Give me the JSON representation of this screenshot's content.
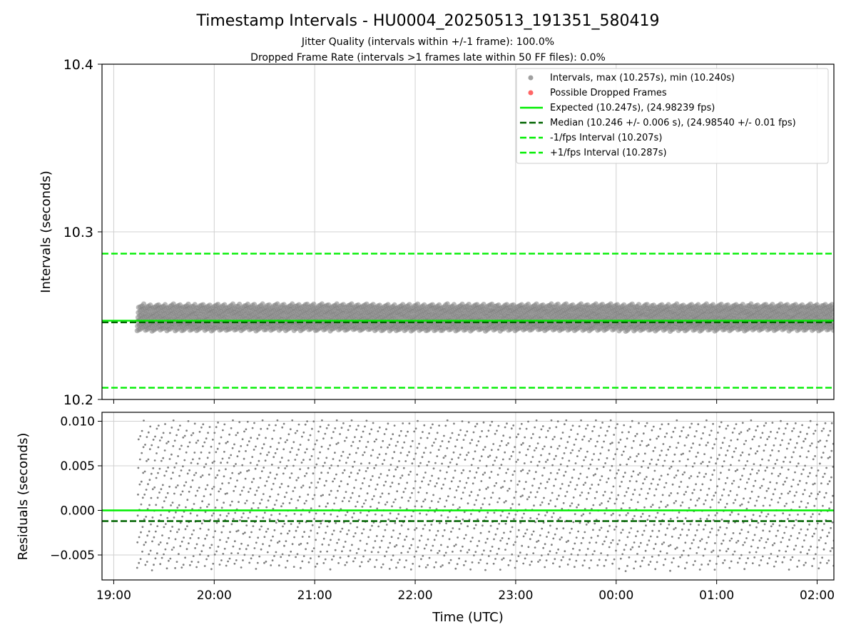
{
  "figure": {
    "title": "Timestamp Intervals - HU0004_20250513_191351_580419",
    "subtitle_jitter": "Jitter Quality (intervals within +/-1 frame): 100.0%",
    "subtitle_dropped": "Dropped Frame Rate (intervals >1 frames late within 50 FF files): 0.0%"
  },
  "chart_data": [
    {
      "type": "scatter",
      "panel": "intervals",
      "ylabel": "Intervals (seconds)",
      "xlabel": "",
      "xlim": [
        "18:53",
        "02:10"
      ],
      "ylim": [
        10.2,
        10.4
      ],
      "yticks": [
        10.2,
        10.3,
        10.4
      ],
      "ytick_labels": [
        "10.2",
        "10.3",
        "10.4"
      ],
      "grid": true,
      "legend_placement": "upper right",
      "legend": [
        {
          "label": "Intervals, max (10.257s), min (10.240s)",
          "kind": "marker",
          "color": "#a0a0a0"
        },
        {
          "label": "Possible Dropped Frames",
          "kind": "marker",
          "color": "#ff6666"
        },
        {
          "label": "Expected (10.247s), (24.98239 fps)",
          "kind": "solid",
          "color": "#00ee00"
        },
        {
          "label": "Median (10.246 +/- 0.006 s), (24.98540 +/- 0.01 fps)",
          "kind": "dashed",
          "color": "#006400"
        },
        {
          "label": "-1/fps Interval (10.207s)",
          "kind": "dashed",
          "color": "#00ee00"
        },
        {
          "label": "+1/fps Interval (10.287s)",
          "kind": "dashed",
          "color": "#00ee00"
        }
      ],
      "series": [
        {
          "name": "Intervals, max (10.257s), min (10.240s)",
          "x_range": [
            "19:14",
            "02:10"
          ],
          "y_range": [
            10.24,
            10.257
          ],
          "color": "#808080"
        },
        {
          "name": "Possible Dropped Frames",
          "x_range": [],
          "y_range": [],
          "color": "#ff6666"
        }
      ],
      "reference_lines": [
        {
          "name": "Expected (10.247s), (24.98239 fps)",
          "y": 10.247,
          "style": "solid",
          "color": "#00ee00"
        },
        {
          "name": "Median (10.246 +/- 0.006 s), (24.98540 +/- 0.01 fps)",
          "y": 10.246,
          "style": "dashed",
          "color": "#006400"
        },
        {
          "name": "-1/fps Interval (10.207s)",
          "y": 10.207,
          "style": "dashed",
          "color": "#00ee00"
        },
        {
          "name": "+1/fps Interval (10.287s)",
          "y": 10.287,
          "style": "dashed",
          "color": "#00ee00"
        }
      ]
    },
    {
      "type": "scatter",
      "panel": "residuals",
      "ylabel": "Residuals (seconds)",
      "xlabel": "Time (UTC)",
      "xlim": [
        "18:53",
        "02:10"
      ],
      "ylim": [
        -0.0078,
        0.011
      ],
      "xticks": [
        "19:00",
        "20:00",
        "21:00",
        "22:00",
        "23:00",
        "00:00",
        "01:00",
        "02:00"
      ],
      "yticks": [
        -0.005,
        0.0,
        0.005,
        0.01
      ],
      "ytick_labels": [
        "−0.005",
        "0.000",
        "0.005",
        "0.010"
      ],
      "grid": true,
      "series": [
        {
          "name": "residuals",
          "x_range": [
            "19:14",
            "02:10"
          ],
          "y_range": [
            -0.0075,
            0.0101
          ],
          "color": "#808080"
        }
      ],
      "reference_lines": [
        {
          "y": 0.0,
          "style": "solid",
          "color": "#00ee00"
        },
        {
          "y": -0.0012,
          "style": "dashed",
          "color": "#006400"
        }
      ]
    }
  ]
}
